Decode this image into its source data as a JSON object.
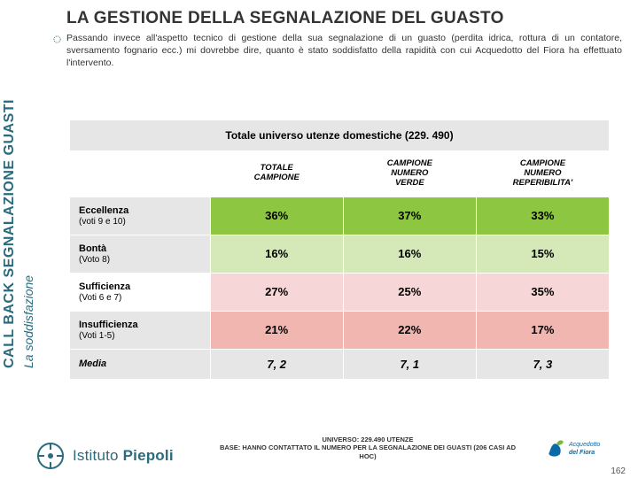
{
  "title": "LA GESTIONE DELLA SEGNALAZIONE DEL GUASTO",
  "intro": "Passando invece all'aspetto tecnico di gestione della sua segnalazione di un guasto (perdita idrica, rottura di un contatore, sversamento fognario ecc.) mi dovrebbe dire, quanto è stato soddisfatto della rapidità con cui Acquedotto del Fiora ha effettuato l'intervento.",
  "sidebar": {
    "main": "CALL BACK SEGNALAZIONE GUASTI",
    "sub": "La soddisfazione"
  },
  "table": {
    "super_header": "Totale universo utenze domestiche (229. 490)",
    "col_headers": [
      "TOTALE CAMPIONE",
      "CAMPIONE NUMERO VERDE",
      "CAMPIONE NUMERO REPERIBILITA'"
    ],
    "rows": [
      {
        "label": "Eccellenza",
        "sub": "(voti 9 e 10)",
        "values": [
          "36%",
          "37%",
          "33%"
        ],
        "bg": "#8dc641",
        "label_bg": "#e6e6e6"
      },
      {
        "label": "Bontà",
        "sub": "(Voto 8)",
        "values": [
          "16%",
          "16%",
          "15%"
        ],
        "bg": "#d5e8b8",
        "label_bg": "#e6e6e6"
      },
      {
        "label": "Sufficienza",
        "sub": "(Voti 6 e 7)",
        "values": [
          "27%",
          "25%",
          "35%"
        ],
        "bg": "#f6d6d6",
        "label_bg": "#ffffff"
      },
      {
        "label": "Insufficienza",
        "sub": "(Voti 1-5)",
        "values": [
          "21%",
          "22%",
          "17%"
        ],
        "bg": "#f2b6b0",
        "label_bg": "#e6e6e6"
      },
      {
        "label": "Media",
        "sub": "",
        "values": [
          "7, 2",
          "7, 1",
          "7, 3"
        ],
        "bg": "#e6e6e6",
        "label_bg": "#e6e6e6",
        "italic": true
      }
    ],
    "label_col_width": "26%",
    "val_col_width": "24.6%"
  },
  "footer": {
    "piepoli": {
      "istituto": "Istituto ",
      "name": "Piepoli"
    },
    "note_line1": "UNIVERSO: 229.490 UTENZE",
    "note_line2": "BASE: HANNO CONTATTATO IL NUMERO PER LA SEGNALAZIONE DEI GUASTI (206 CASI AD HOC)",
    "pagenum": "162"
  },
  "colors": {
    "brand": "#2a6b7d",
    "aqua_blue": "#0a6aa8",
    "aqua_leaf": "#7db542"
  }
}
